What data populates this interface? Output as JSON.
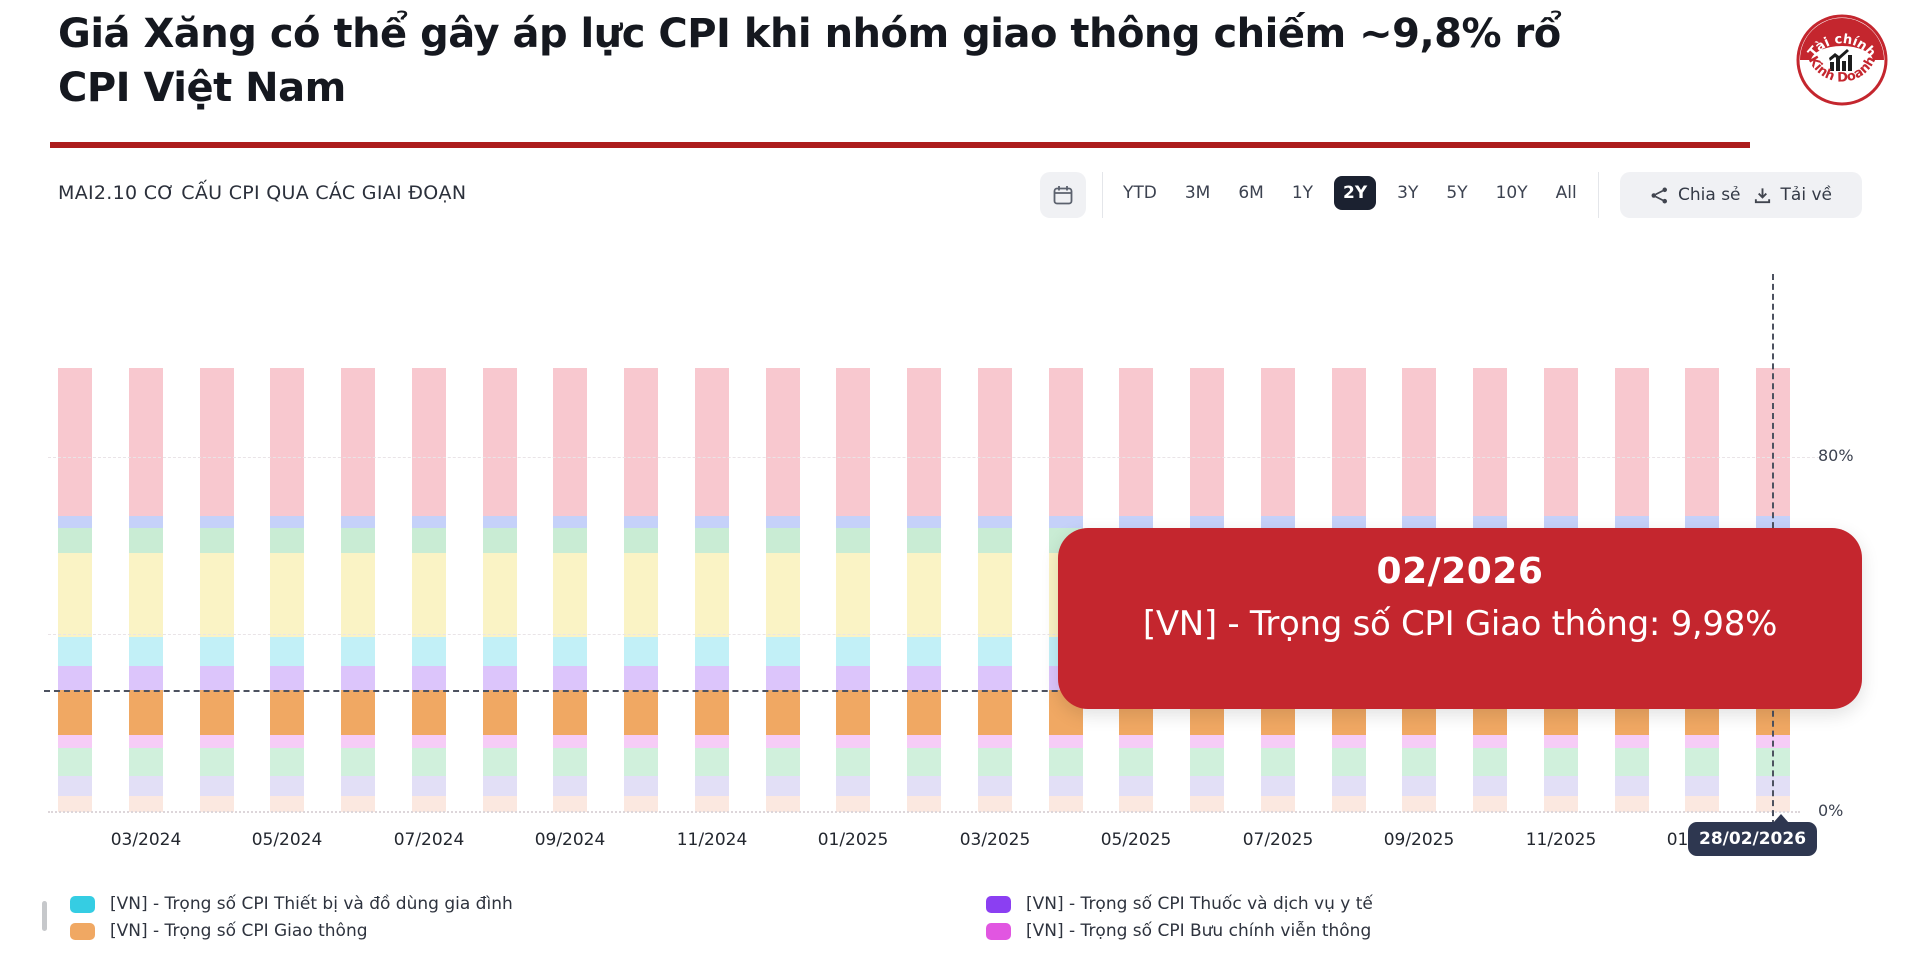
{
  "header": {
    "title_line1": "Giá Xăng có thể gây áp lực CPI khi nhóm giao thông chiếm ~9,8% rổ",
    "title_line2": "CPI Việt Nam",
    "logo": {
      "top_text": "Tài chính",
      "bottom_text": "Kinh Doanh",
      "icon": "bar-chart-icon",
      "color": "#c4262e"
    }
  },
  "toolbar": {
    "section_title": "MAI2.10 CƠ CẤU CPI QUA CÁC GIAI ĐOẠN",
    "calendar_icon": "calendar-icon",
    "ranges": [
      "YTD",
      "3M",
      "6M",
      "1Y",
      "2Y",
      "3Y",
      "5Y",
      "10Y",
      "All"
    ],
    "selected_range": "2Y",
    "share_icon": "share-icon",
    "share_label": "Chia sẻ",
    "download_icon": "download-icon",
    "download_label": "Tải về"
  },
  "chart_data": {
    "type": "bar",
    "stacked": true,
    "stack_unit": "percent",
    "ylim": [
      0,
      100
    ],
    "grid": true,
    "gridlines_percent": [
      80,
      40
    ],
    "yticks": [
      {
        "label": "80%",
        "value": 80
      },
      {
        "label": "0%",
        "value": 0
      }
    ],
    "x": [
      "02/2024",
      "03/2024",
      "04/2024",
      "05/2024",
      "06/2024",
      "07/2024",
      "08/2024",
      "09/2024",
      "10/2024",
      "11/2024",
      "12/2024",
      "01/2025",
      "02/2025",
      "03/2025",
      "04/2025",
      "05/2025",
      "06/2025",
      "07/2025",
      "08/2025",
      "09/2025",
      "10/2025",
      "11/2025",
      "12/2025",
      "01/2026",
      "02/2026"
    ],
    "x_tick_labels": [
      "03/2024",
      "05/2024",
      "07/2024",
      "09/2024",
      "11/2024",
      "01/2025",
      "03/2025",
      "05/2025",
      "07/2025",
      "09/2025",
      "11/2025",
      "01/2026"
    ],
    "series_note": "same weights every month; order is top-to-bottom of each stacked bar; faded=true means dimmed because another series is highlighted",
    "series": [
      {
        "label": null,
        "color": "#e84860",
        "value": 33.32,
        "faded": true
      },
      {
        "label": null,
        "color": "#3f66ec",
        "value": 2.7,
        "faded": true
      },
      {
        "label": null,
        "color": "#4bc070",
        "value": 5.7,
        "faded": true
      },
      {
        "label": null,
        "color": "#eed63e",
        "value": 18.8,
        "faded": true
      },
      {
        "label": "[VN] - Trọng số CPI Thiết bị và đồ dùng gia đình",
        "color": "#35cde3",
        "value": 6.7,
        "faded": true
      },
      {
        "label": "[VN] - Trọng số CPI Thuốc và dịch vụ y tế",
        "color": "#8b3ff2",
        "value": 5.4,
        "faded": true
      },
      {
        "label": "[VN] - Trọng số CPI Giao thông",
        "color": "#f0a863",
        "value": 9.98,
        "faded": false
      },
      {
        "label": "[VN] - Trọng số CPI Bưu chính viễn thông",
        "color": "#e156e1",
        "value": 3.1,
        "faded": true
      },
      {
        "label": null,
        "color": "#63cd8c",
        "value": 6.2,
        "faded": true
      },
      {
        "label": null,
        "color": "#9e94e1",
        "value": 4.6,
        "faded": true
      },
      {
        "label": null,
        "color": "#f2b298",
        "value": 3.5,
        "faded": true
      }
    ],
    "highlighted_series": "[VN] - Trọng số CPI Giao thông",
    "crosshair": {
      "x": "02/2026",
      "y_percent": 27.38
    },
    "cursor_label": "28/02/2026"
  },
  "tooltip": {
    "title": "02/2026",
    "body": "[VN] - Trọng số CPI Giao thông: 9,98%",
    "bg": "#c4262e"
  },
  "legend": {
    "left": [
      {
        "label": "[VN] - Trọng số CPI Thiết bị và đồ dùng gia đình",
        "color": "#35cde3"
      },
      {
        "label": "[VN] - Trọng số CPI Giao thông",
        "color": "#f0a863"
      }
    ],
    "right": [
      {
        "label": "[VN] - Trọng số CPI Thuốc và dịch vụ y tế",
        "color": "#8b3ff2"
      },
      {
        "label": "[VN] - Trọng số CPI Bưu chính viễn thông",
        "color": "#e156e1"
      }
    ]
  },
  "colors": {
    "brand_red": "#ad1d1d",
    "tooltip_bg": "#c4262e",
    "selected_range_bg": "#1b2130",
    "cursor_badge_bg": "#2e3750",
    "crosshair": "#4d5260"
  }
}
